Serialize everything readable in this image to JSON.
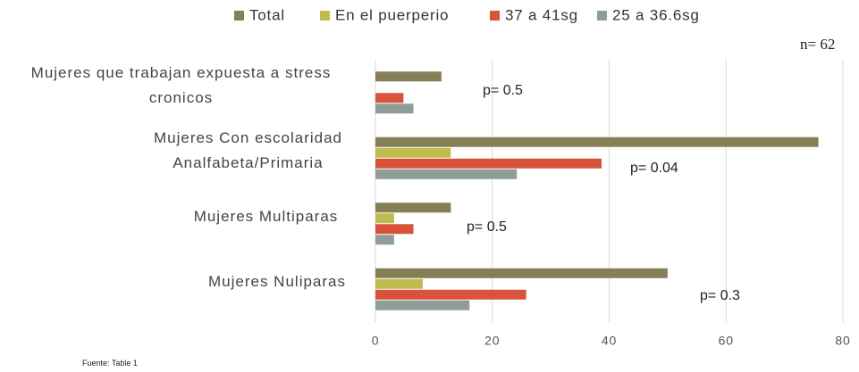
{
  "chart_data": {
    "type": "barh",
    "categories": [
      "Mujeres que trabajan expuesta a stress cronicos",
      "Mujeres Con escolaridad Analfabeta/Primaria",
      "Mujeres Multiparas",
      "Mujeres Nuliparas"
    ],
    "series": [
      {
        "name": "Total",
        "color": "#857f55",
        "values": [
          11.3,
          75.8,
          12.9,
          50
        ]
      },
      {
        "name": "En el puerperio",
        "color": "#bfbb4f",
        "values": [
          0,
          12.9,
          3.2,
          8.1
        ]
      },
      {
        "name": "37 a 41sg",
        "color": "#d9533c",
        "values": [
          4.8,
          38.7,
          6.5,
          25.8
        ]
      },
      {
        "name": "25 a 36.6sg",
        "color": "#8e9e96",
        "values": [
          6.5,
          24.2,
          3.2,
          16.1
        ]
      }
    ],
    "xlim": [
      0,
      80
    ],
    "xticks": [
      0,
      20,
      40,
      60,
      80
    ],
    "grid": true,
    "annotations": [
      "p= 0.5",
      "p= 0.04",
      "p= 0.5",
      "p= 0.3",
      "n= 62",
      "Fuente: Table 1"
    ]
  }
}
